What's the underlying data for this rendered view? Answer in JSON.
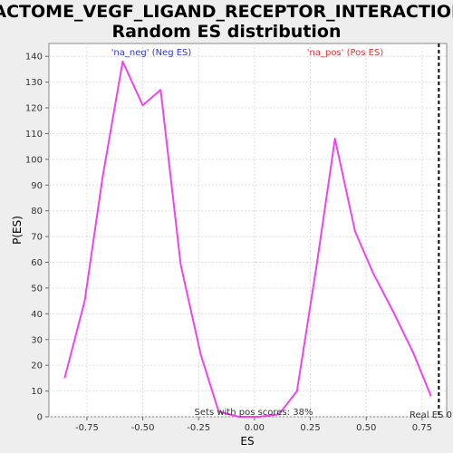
{
  "chart_data": {
    "type": "line",
    "title_lines": [
      "REACTOME_VEGF_LIGAND_RECEPTOR_INTERACTIONS:",
      "Random ES distribution"
    ],
    "xlabel": "ES",
    "ylabel": "P(ES)",
    "xlim": [
      -0.92,
      0.86
    ],
    "ylim": [
      0,
      145
    ],
    "xticks": [
      -0.75,
      -0.5,
      -0.25,
      0.0,
      0.25,
      0.5,
      0.75
    ],
    "xtick_labels": [
      "-0.75",
      "-0.50",
      "-0.25",
      "0.00",
      "0.25",
      "0.50",
      "0.75"
    ],
    "yticks": [
      0,
      10,
      20,
      30,
      40,
      50,
      60,
      70,
      80,
      90,
      100,
      110,
      120,
      130,
      140
    ],
    "ytick_labels": [
      "0",
      "10",
      "20",
      "30",
      "40",
      "50",
      "60",
      "70",
      "80",
      "90",
      "100",
      "110",
      "120",
      "130",
      "140"
    ],
    "grid": true,
    "series": [
      {
        "color": "#ee44ee",
        "x": [
          -0.85,
          -0.76,
          -0.68,
          -0.59,
          -0.5,
          -0.42,
          -0.33,
          -0.24,
          -0.16,
          -0.07,
          0.02,
          0.11,
          0.19,
          0.28,
          0.36,
          0.45,
          0.53,
          0.62,
          0.71,
          0.79
        ],
        "y": [
          15,
          45,
          93,
          138,
          121,
          127,
          59,
          24,
          2,
          0,
          0,
          1,
          10,
          60,
          108,
          72,
          56,
          41,
          25,
          8
        ]
      }
    ],
    "annotations": {
      "neg_label": "'na_neg' (Neg ES)",
      "pos_label": "'na_pos' (Pos ES)",
      "sets_label": "Sets with pos scores: 38%",
      "real_es_label": "Real ES 0"
    },
    "real_es_x": 0.825,
    "colors": {
      "neg": "#3333cc",
      "pos": "#dd3333",
      "plot_bg": "#ffffff",
      "grid": "#dddddd"
    }
  }
}
